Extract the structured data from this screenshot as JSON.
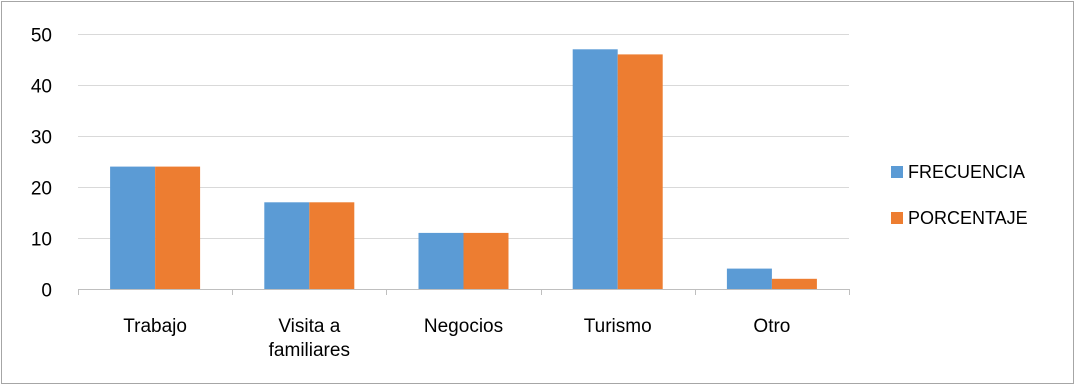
{
  "chart_data": {
    "type": "bar",
    "title": "",
    "xlabel": "",
    "ylabel": "",
    "categories": [
      [
        "Trabajo"
      ],
      [
        "Visita a",
        "familiares"
      ],
      [
        "Negocios"
      ],
      [
        "Turismo"
      ],
      [
        "Otro"
      ]
    ],
    "series": [
      {
        "name": "FRECUENCIA",
        "color": "#5b9bd5",
        "values": [
          24,
          17,
          11,
          47,
          4
        ]
      },
      {
        "name": "PORCENTAJE",
        "color": "#ed7d31",
        "values": [
          24,
          17,
          11,
          46,
          2
        ]
      }
    ],
    "ylim": [
      0,
      50
    ],
    "yticks": [
      0,
      10,
      20,
      30,
      40,
      50
    ],
    "grid": true,
    "legend_position": "right"
  }
}
